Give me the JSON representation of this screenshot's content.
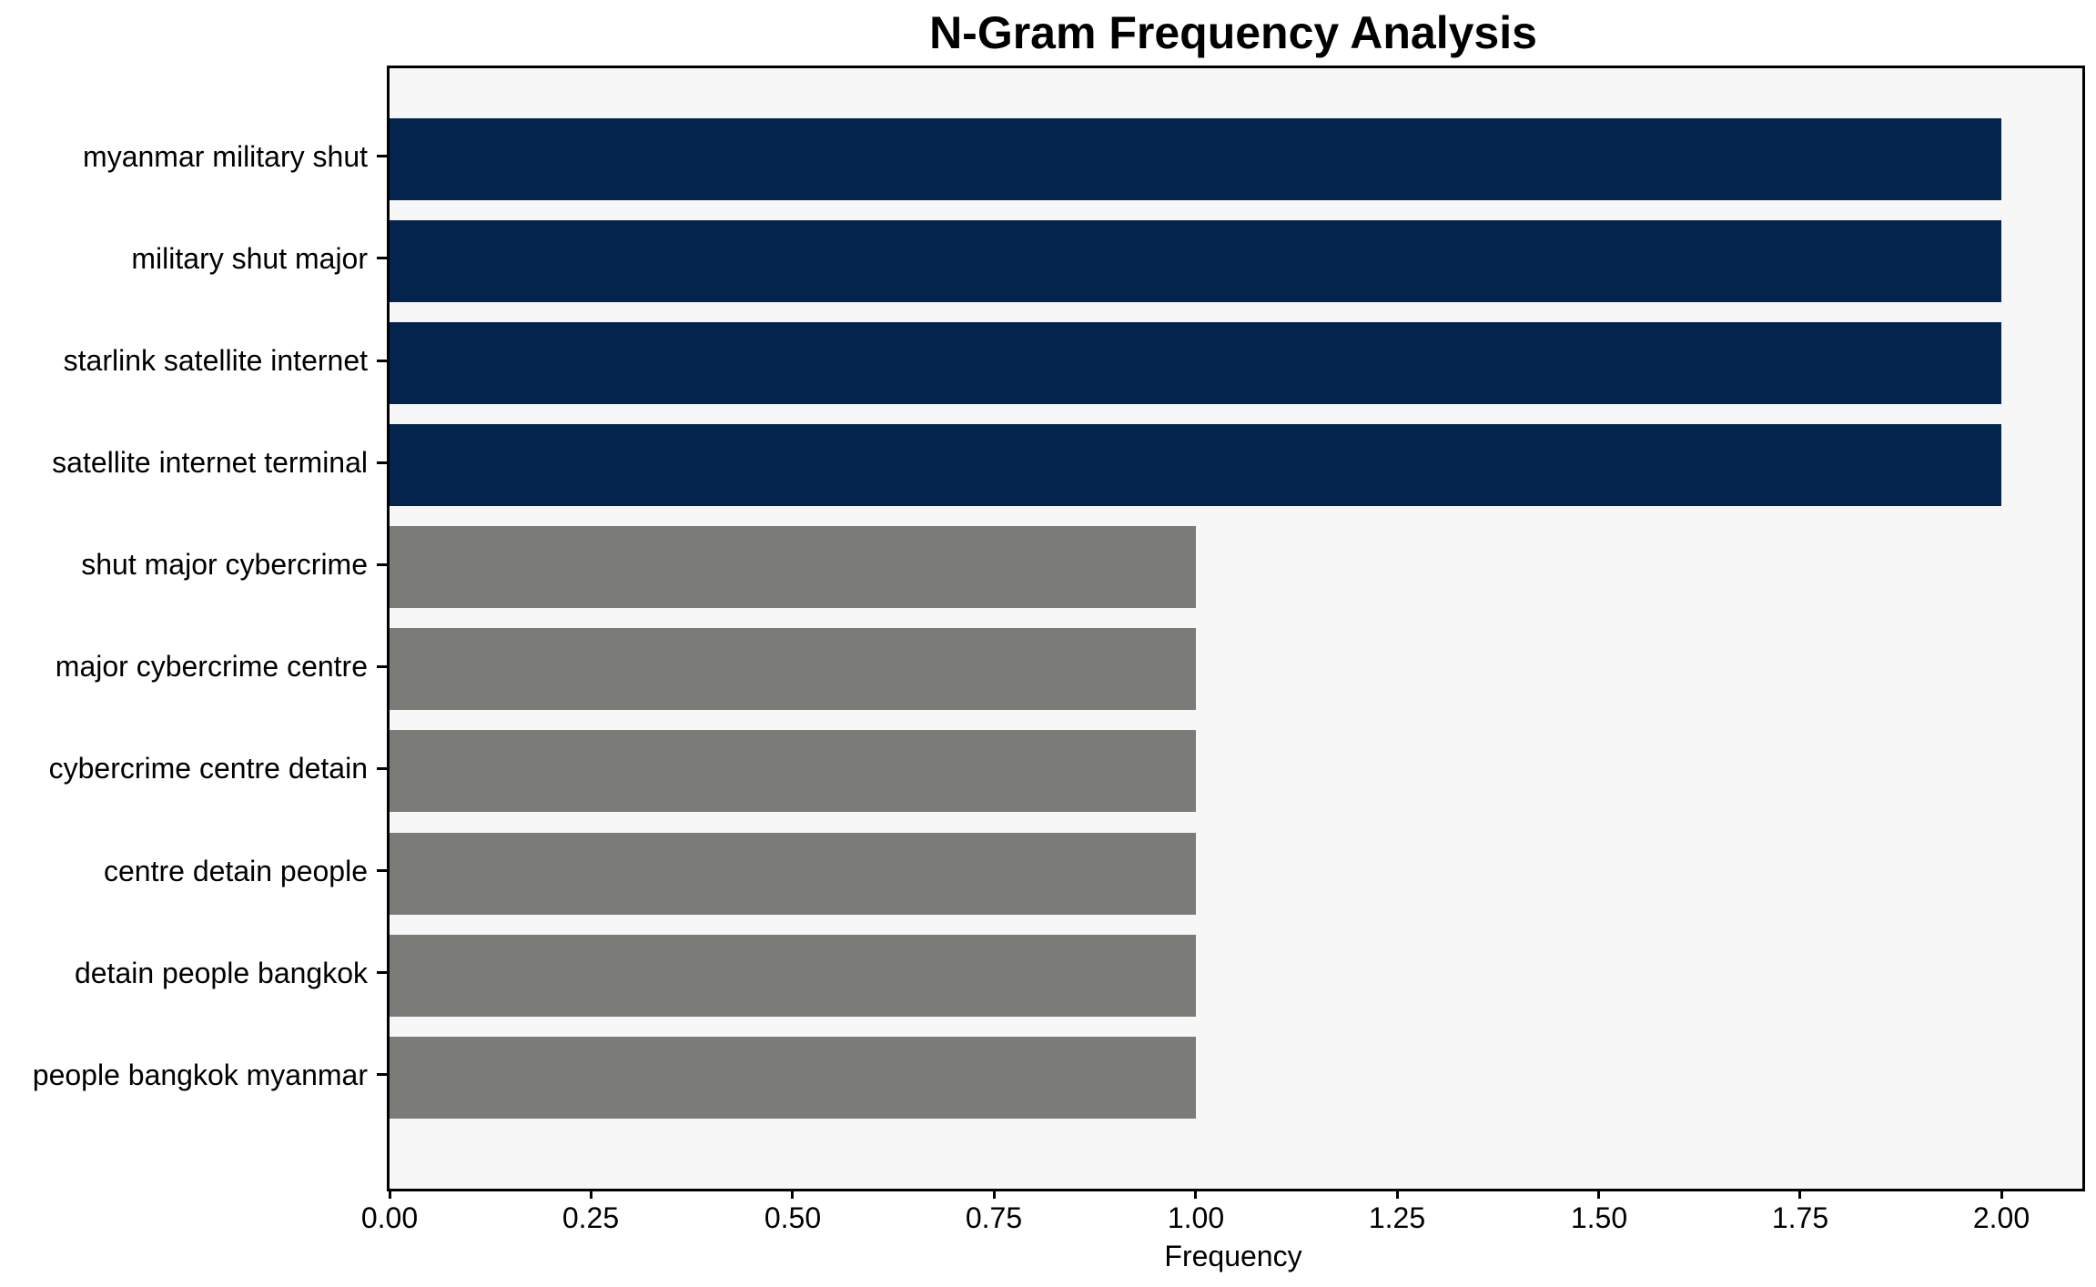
{
  "chart_data": {
    "type": "bar",
    "orientation": "horizontal",
    "title": "N-Gram Frequency Analysis",
    "xlabel": "Frequency",
    "ylabel": "",
    "categories": [
      "myanmar military shut",
      "military shut major",
      "starlink satellite internet",
      "satellite internet terminal",
      "shut major cybercrime",
      "major cybercrime centre",
      "cybercrime centre detain",
      "centre detain people",
      "detain people bangkok",
      "people bangkok myanmar"
    ],
    "values": [
      2,
      2,
      2,
      2,
      1,
      1,
      1,
      1,
      1,
      1
    ],
    "bar_colors": [
      "#03254d",
      "#03254d",
      "#03254d",
      "#03254d",
      "#7b7b78",
      "#7b7b78",
      "#7b7b78",
      "#7b7b78",
      "#7b7b78",
      "#7b7b78"
    ],
    "xlim": [
      0,
      2.1
    ],
    "xtick_labels": [
      "0.00",
      "0.25",
      "0.50",
      "0.75",
      "1.00",
      "1.25",
      "1.50",
      "1.75",
      "2.00"
    ],
    "xtick_values": [
      0,
      0.25,
      0.5,
      0.75,
      1.0,
      1.25,
      1.5,
      1.75,
      2.0
    ],
    "grid": false,
    "legend": "none",
    "colors": {
      "high_frequency_bar": "#03254d",
      "low_frequency_bar": "#7b7b78",
      "plot_background": "#f7f7f7",
      "figure_background": "#ffffff",
      "spine": "#000000",
      "text": "#000000"
    }
  }
}
